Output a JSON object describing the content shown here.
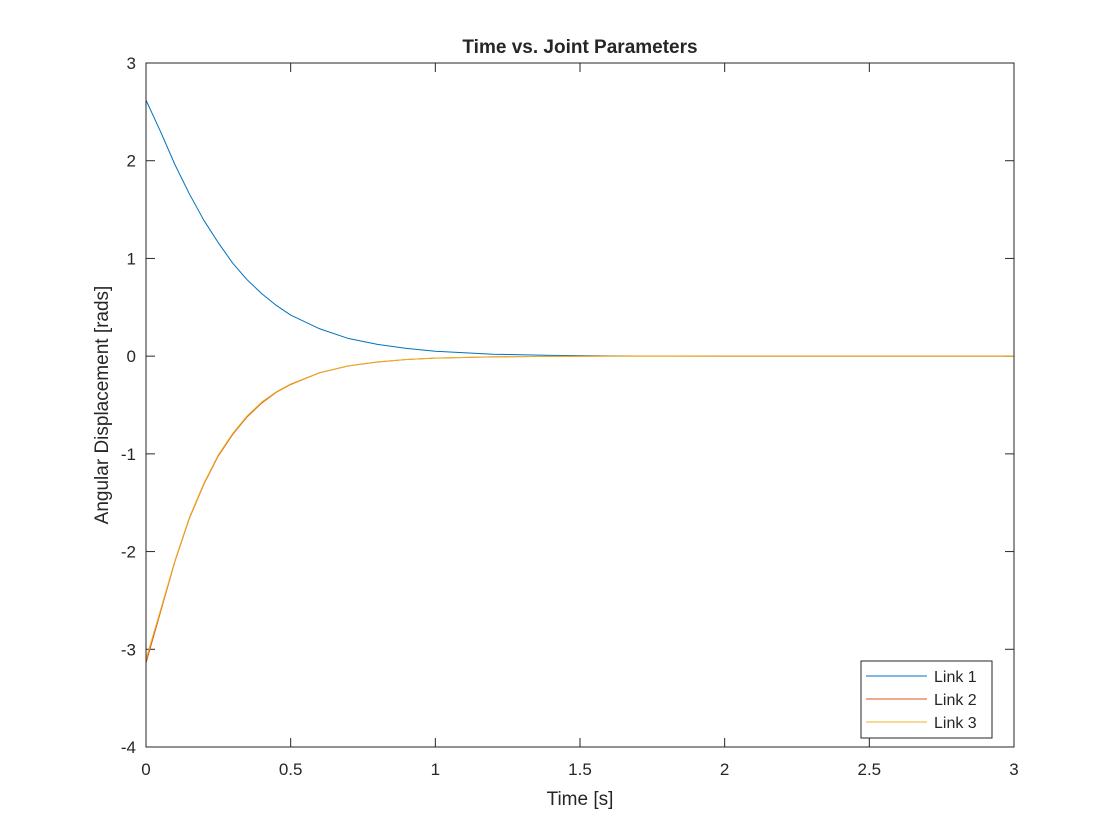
{
  "chart_data": {
    "type": "line",
    "title": "Time vs. Joint Parameters",
    "xlabel": "Time [s]",
    "ylabel": "Angular Displacement [rads]",
    "xlim": [
      0,
      3
    ],
    "ylim": [
      -4,
      3
    ],
    "xticks": [
      0,
      0.5,
      1,
      1.5,
      2,
      2.5,
      3
    ],
    "xtick_labels": [
      "0",
      "0.5",
      "1",
      "1.5",
      "2",
      "2.5",
      "3"
    ],
    "yticks": [
      -4,
      -3,
      -2,
      -1,
      0,
      1,
      2,
      3
    ],
    "ytick_labels": [
      "-4",
      "-3",
      "-2",
      "-1",
      "0",
      "1",
      "2",
      "3"
    ],
    "grid": false,
    "legend_position": "bottom-right",
    "x": [
      0,
      0.05,
      0.1,
      0.15,
      0.2,
      0.25,
      0.3,
      0.35,
      0.4,
      0.45,
      0.5,
      0.6,
      0.7,
      0.8,
      0.9,
      1.0,
      1.2,
      1.4,
      1.6,
      1.8,
      2.0,
      2.5,
      3.0
    ],
    "series": [
      {
        "name": "Link 1",
        "color": "#0072BD",
        "values": [
          2.62,
          2.3,
          1.96,
          1.66,
          1.39,
          1.16,
          0.95,
          0.78,
          0.64,
          0.52,
          0.42,
          0.28,
          0.18,
          0.12,
          0.08,
          0.05,
          0.02,
          0.008,
          0.003,
          0.001,
          0.0,
          0.0,
          0.0
        ]
      },
      {
        "name": "Link 2",
        "color": "#D95319",
        "values": [
          -3.14,
          -2.62,
          -2.1,
          -1.66,
          -1.31,
          -1.02,
          -0.8,
          -0.62,
          -0.48,
          -0.37,
          -0.29,
          -0.17,
          -0.1,
          -0.06,
          -0.035,
          -0.02,
          -0.007,
          -0.002,
          0.0,
          0.0,
          0.0,
          0.0,
          0.0
        ]
      },
      {
        "name": "Link 3",
        "color": "#EDB120",
        "values": [
          -3.1,
          -2.6,
          -2.09,
          -1.65,
          -1.3,
          -1.01,
          -0.79,
          -0.61,
          -0.47,
          -0.365,
          -0.285,
          -0.168,
          -0.098,
          -0.058,
          -0.034,
          -0.019,
          -0.006,
          -0.002,
          0.0,
          0.0,
          0.0,
          0.0,
          0.0
        ]
      }
    ]
  }
}
